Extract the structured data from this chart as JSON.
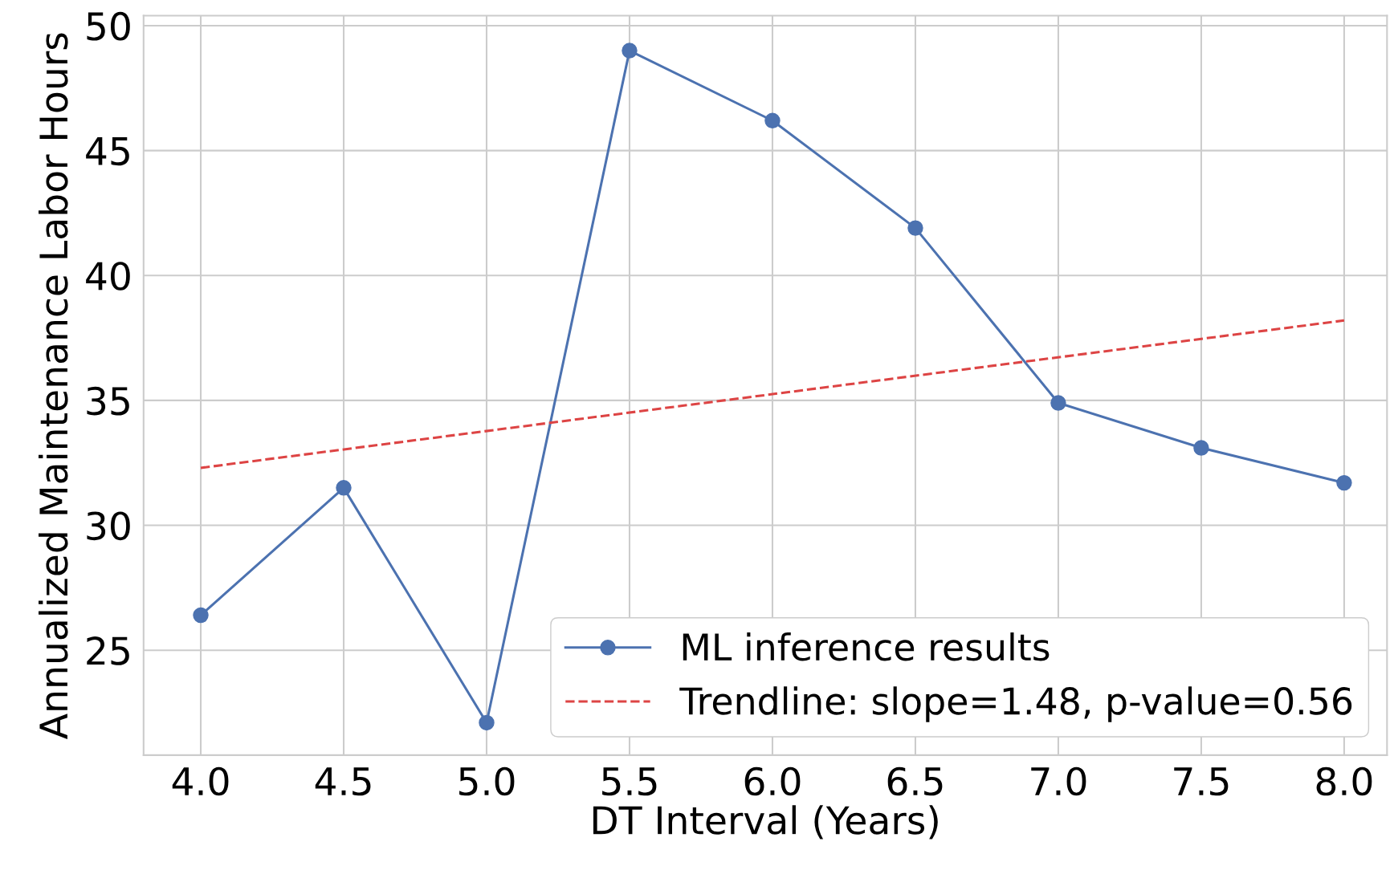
{
  "chart_data": {
    "type": "line",
    "xlabel": "DT Interval (Years)",
    "ylabel": "Annualized Maintenance Labor Hours",
    "x": [
      4.0,
      4.5,
      5.0,
      5.5,
      6.0,
      6.5,
      7.0,
      7.5,
      8.0
    ],
    "series": [
      {
        "name": "ML inference results",
        "color": "#4c72b0",
        "values": [
          26.4,
          31.5,
          22.1,
          49.0,
          46.2,
          41.9,
          34.9,
          33.1,
          31.7
        ],
        "marker": "circle",
        "line_style": "solid"
      },
      {
        "name": "Trendline: slope=1.48, p-value=0.56",
        "color": "#dd4444",
        "x": [
          4.0,
          8.0
        ],
        "values": [
          32.3,
          38.2
        ],
        "marker": "none",
        "line_style": "dashed"
      }
    ],
    "xlim": [
      3.8,
      8.15
    ],
    "ylim": [
      20.8,
      50.4
    ],
    "xticks": [
      {
        "value": 4.0,
        "label": "4.0"
      },
      {
        "value": 4.5,
        "label": "4.5"
      },
      {
        "value": 5.0,
        "label": "5.0"
      },
      {
        "value": 5.5,
        "label": "5.5"
      },
      {
        "value": 6.0,
        "label": "6.0"
      },
      {
        "value": 6.5,
        "label": "6.5"
      },
      {
        "value": 7.0,
        "label": "7.0"
      },
      {
        "value": 7.5,
        "label": "7.5"
      },
      {
        "value": 8.0,
        "label": "8.0"
      }
    ],
    "yticks": [
      25,
      30,
      35,
      40,
      45,
      50
    ],
    "grid": true,
    "legend": "bottom right"
  }
}
